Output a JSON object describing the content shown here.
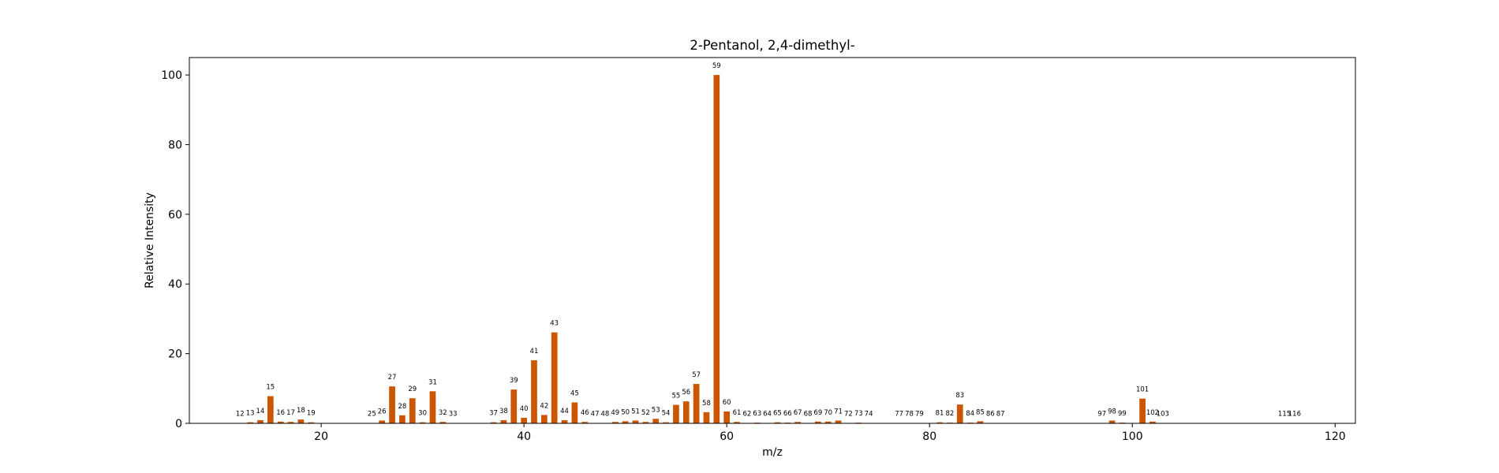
{
  "chart_data": {
    "type": "bar",
    "title": "2-Pentanol, 2,4-dimethyl-",
    "xlabel": "m/z",
    "ylabel": "Relative Intensity",
    "xlim": [
      7,
      122
    ],
    "ylim": [
      0,
      105
    ],
    "xticks": [
      20,
      40,
      60,
      80,
      100,
      120
    ],
    "yticks": [
      0,
      20,
      40,
      60,
      80,
      100
    ],
    "bar_color": "#cc5500",
    "x": [
      12,
      13,
      14,
      15,
      16,
      17,
      18,
      19,
      25,
      26,
      27,
      28,
      29,
      30,
      31,
      32,
      33,
      37,
      38,
      39,
      40,
      41,
      42,
      43,
      44,
      45,
      46,
      47,
      48,
      49,
      50,
      51,
      52,
      53,
      54,
      55,
      56,
      57,
      58,
      59,
      60,
      61,
      62,
      63,
      64,
      65,
      66,
      67,
      68,
      69,
      70,
      71,
      72,
      73,
      74,
      77,
      78,
      79,
      81,
      82,
      83,
      84,
      85,
      86,
      87,
      97,
      98,
      99,
      101,
      102,
      103,
      115,
      116
    ],
    "values": [
      0.1,
      0.3,
      0.9,
      7.8,
      0.5,
      0.4,
      1.1,
      0.3,
      0.1,
      0.8,
      10.6,
      2.3,
      7.2,
      0.3,
      9.2,
      0.4,
      0.1,
      0.3,
      0.9,
      9.7,
      1.6,
      18.1,
      2.4,
      26.1,
      0.9,
      6.0,
      0.4,
      0.1,
      0.1,
      0.4,
      0.6,
      0.8,
      0.4,
      1.3,
      0.3,
      5.3,
      6.3,
      11.3,
      3.2,
      100,
      3.4,
      0.4,
      0.1,
      0.2,
      0.1,
      0.3,
      0.2,
      0.4,
      0.1,
      0.5,
      0.5,
      0.8,
      0.1,
      0.2,
      0.1,
      0.1,
      0.1,
      0.1,
      0.3,
      0.2,
      5.4,
      0.2,
      0.6,
      0.1,
      0.1,
      0.1,
      0.8,
      0.2,
      7.1,
      0.5,
      0.1,
      0.1,
      0.1
    ],
    "labels": [
      "12",
      "13",
      "14",
      "15",
      "16",
      "17",
      "18",
      "19",
      "25",
      "26",
      "27",
      "28",
      "29",
      "30",
      "31",
      "32",
      "33",
      "37",
      "38",
      "39",
      "40",
      "41",
      "42",
      "43",
      "44",
      "45",
      "46",
      "47",
      "48",
      "49",
      "50",
      "51",
      "52",
      "53",
      "54",
      "55",
      "56",
      "57",
      "58",
      "59",
      "60",
      "61",
      "62",
      "63",
      "64",
      "65",
      "66",
      "67",
      "68",
      "69",
      "70",
      "71",
      "72",
      "73",
      "74",
      "77",
      "78",
      "79",
      "81",
      "82",
      "83",
      "84",
      "85",
      "86",
      "87",
      "97",
      "98",
      "99",
      "101",
      "102",
      "103",
      "115",
      "116"
    ],
    "grid": false,
    "legend": false
  }
}
